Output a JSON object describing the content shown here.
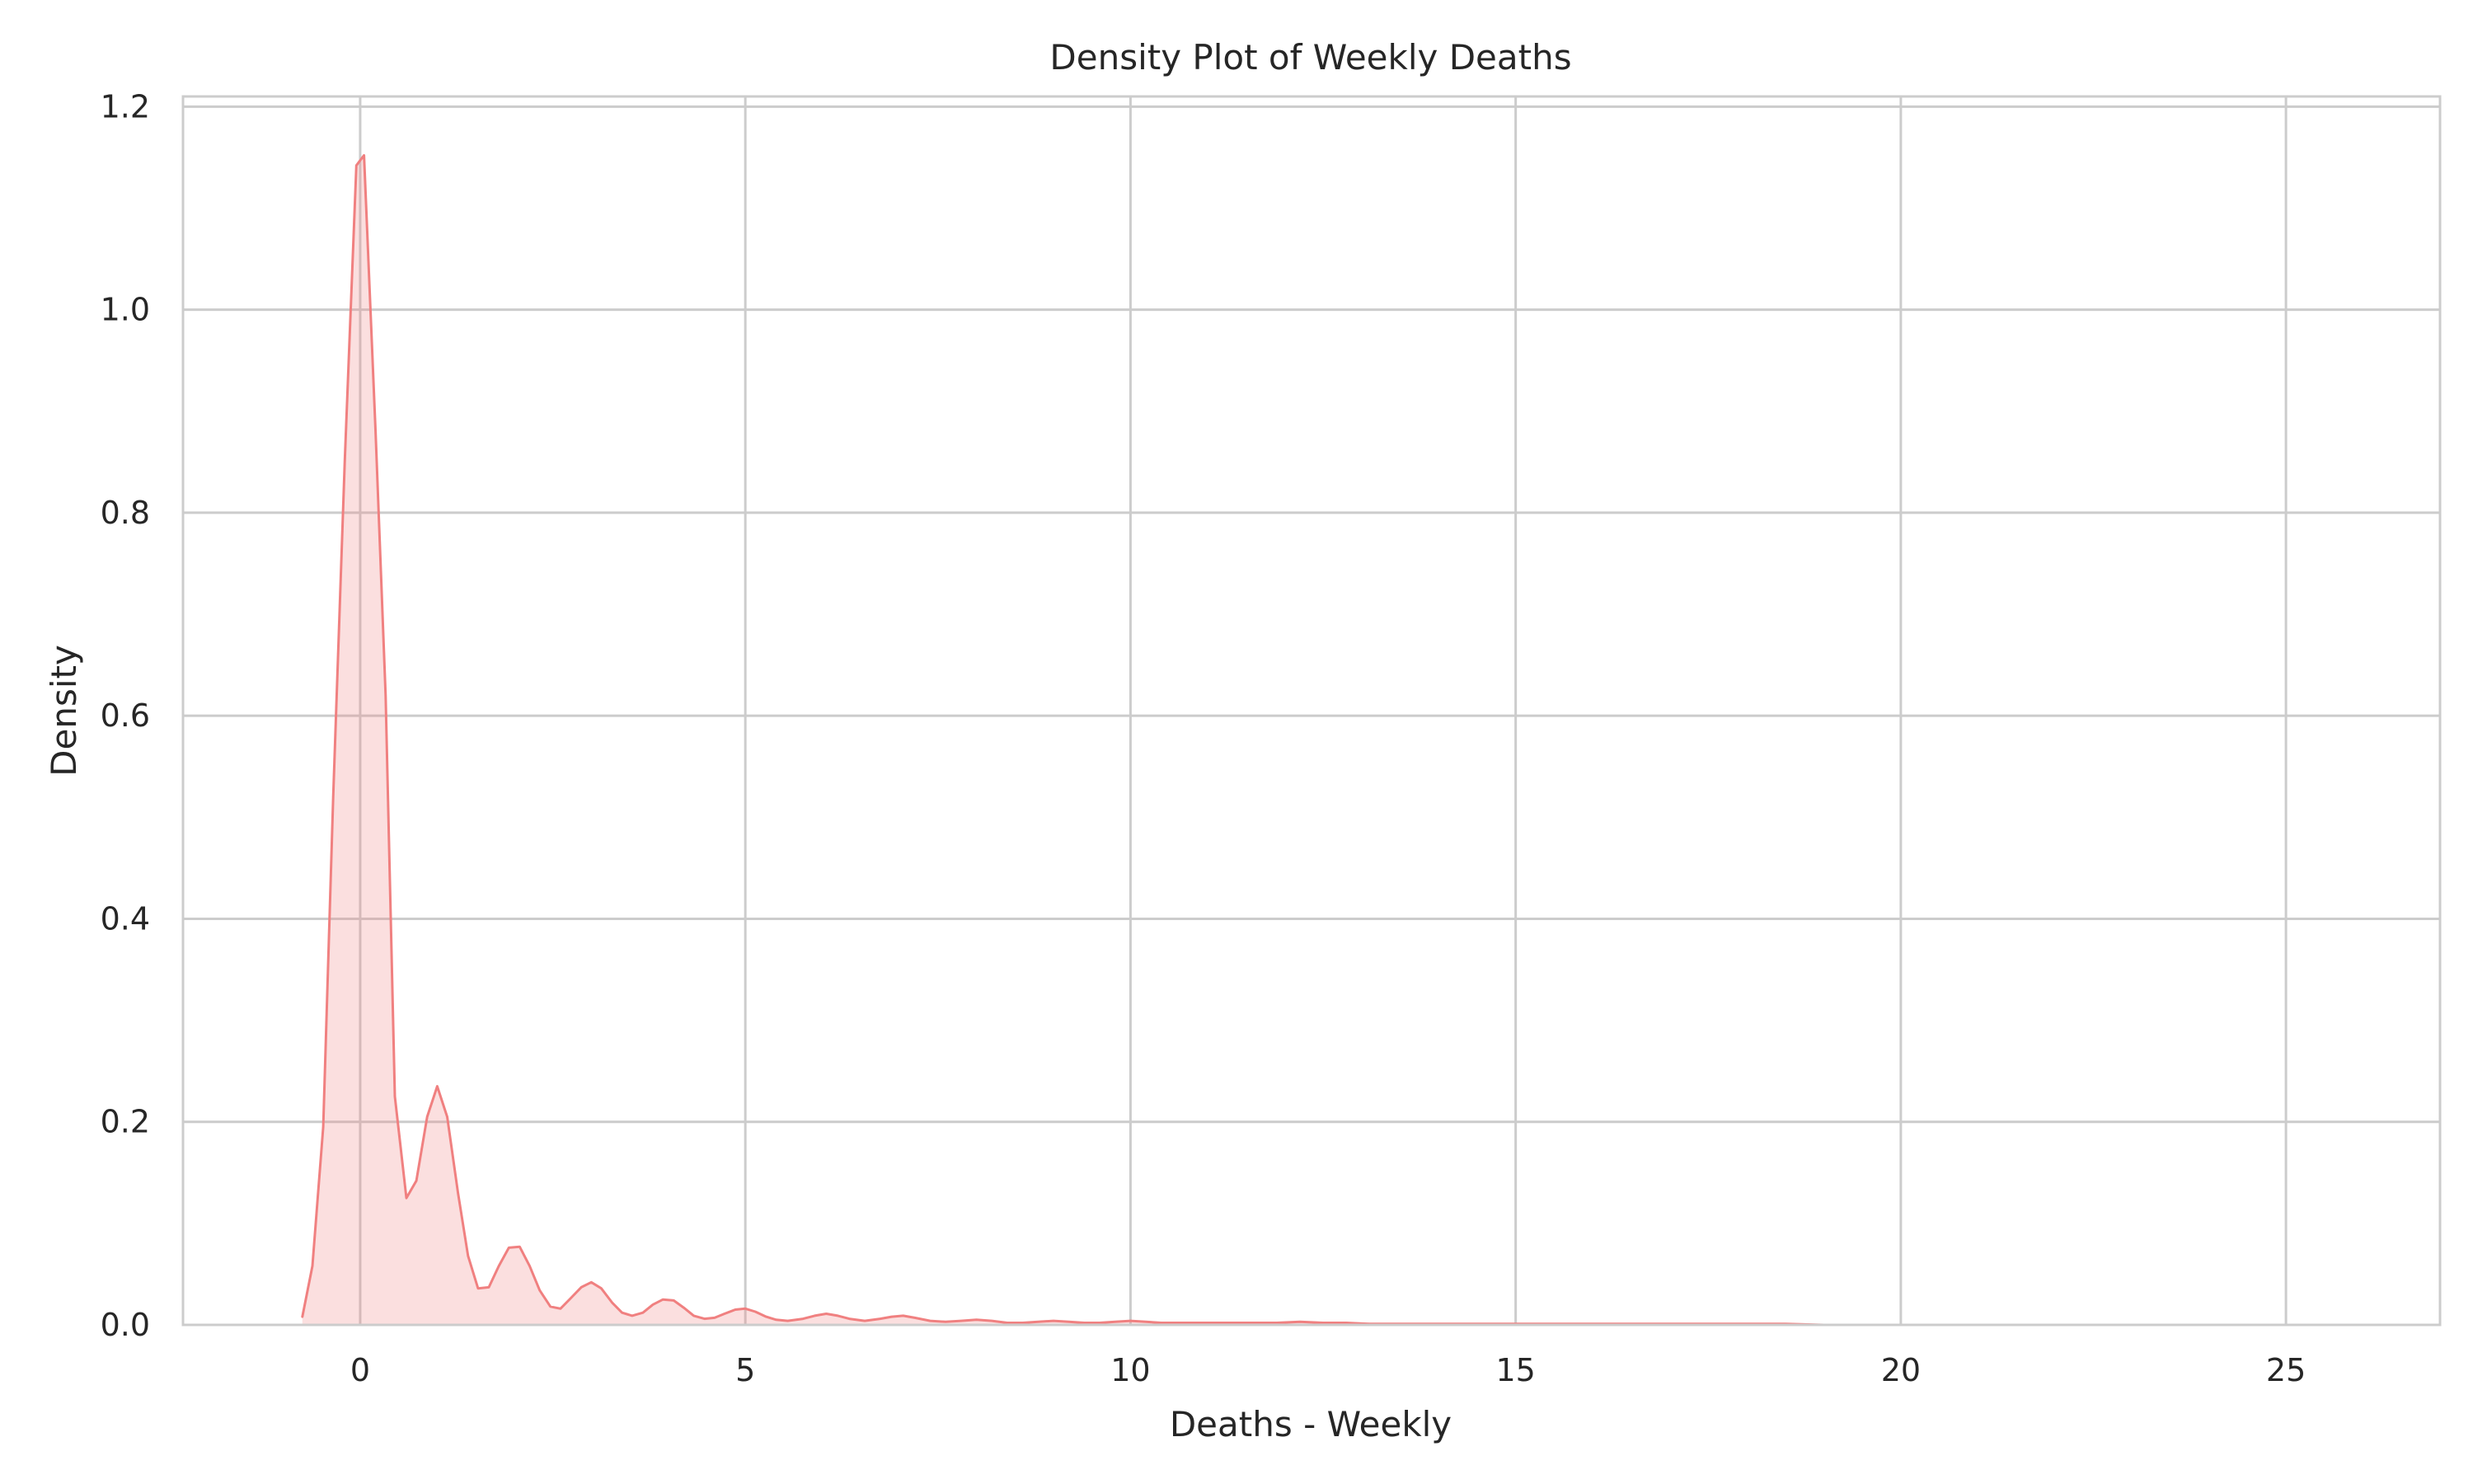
{
  "chart_data": {
    "type": "area",
    "title": "Density Plot of Weekly Deaths",
    "xlabel": "Deaths - Weekly",
    "ylabel": "Density",
    "xlim": [
      -2.3,
      27.0
    ],
    "ylim": [
      0.0,
      1.21
    ],
    "xticks": [
      0,
      5,
      10,
      15,
      20,
      25
    ],
    "yticks": [
      0.0,
      0.2,
      0.4,
      0.6,
      0.8,
      1.0,
      1.2
    ],
    "xtick_labels": [
      "0",
      "5",
      "10",
      "15",
      "20",
      "25"
    ],
    "ytick_labels": [
      "0.0",
      "0.2",
      "0.4",
      "0.6",
      "0.8",
      "1.0",
      "1.2"
    ],
    "grid": true,
    "series": [
      {
        "color": "#f08080",
        "fill_color": "#f08080",
        "fill_opacity": 0.25,
        "x": [
          -0.75,
          -0.62,
          -0.48,
          -0.35,
          -0.2,
          -0.05,
          0.05,
          0.2,
          0.33,
          0.45,
          0.6,
          0.73,
          0.87,
          1.0,
          1.13,
          1.27,
          1.4,
          1.53,
          1.67,
          1.8,
          1.93,
          2.07,
          2.2,
          2.33,
          2.47,
          2.6,
          2.73,
          2.87,
          3.0,
          3.13,
          3.27,
          3.4,
          3.53,
          3.67,
          3.8,
          3.93,
          4.07,
          4.2,
          4.33,
          4.47,
          4.6,
          4.73,
          4.87,
          5.0,
          5.13,
          5.27,
          5.4,
          5.55,
          5.75,
          5.9,
          6.05,
          6.2,
          6.35,
          6.55,
          6.75,
          6.9,
          7.05,
          7.2,
          7.4,
          7.6,
          7.8,
          8.0,
          8.2,
          8.4,
          8.6,
          8.8,
          9.0,
          9.2,
          9.4,
          9.6,
          9.8,
          10.0,
          10.2,
          10.4,
          10.7,
          11.0,
          11.3,
          11.6,
          11.9,
          12.2,
          12.5,
          12.8,
          13.1,
          13.5,
          14.0,
          14.5,
          15.0,
          15.5,
          16.0,
          16.5,
          17.0,
          17.5,
          18.0,
          18.5,
          19.0,
          20.0,
          21.0,
          22.0,
          23.0,
          24.0,
          25.0,
          25.8
        ],
        "y": [
          0.008,
          0.058,
          0.195,
          0.52,
          0.85,
          1.142,
          1.152,
          0.88,
          0.62,
          0.225,
          0.125,
          0.142,
          0.205,
          0.235,
          0.205,
          0.13,
          0.068,
          0.036,
          0.037,
          0.058,
          0.076,
          0.077,
          0.058,
          0.034,
          0.018,
          0.016,
          0.026,
          0.037,
          0.042,
          0.036,
          0.022,
          0.012,
          0.009,
          0.012,
          0.02,
          0.025,
          0.024,
          0.017,
          0.009,
          0.006,
          0.007,
          0.011,
          0.015,
          0.016,
          0.013,
          0.008,
          0.005,
          0.004,
          0.006,
          0.009,
          0.011,
          0.009,
          0.006,
          0.004,
          0.006,
          0.008,
          0.009,
          0.007,
          0.004,
          0.003,
          0.004,
          0.005,
          0.004,
          0.002,
          0.002,
          0.003,
          0.004,
          0.003,
          0.002,
          0.002,
          0.003,
          0.004,
          0.003,
          0.002,
          0.002,
          0.002,
          0.002,
          0.002,
          0.002,
          0.003,
          0.002,
          0.002,
          0.001,
          0.001,
          0.001,
          0.001,
          0.001,
          0.001,
          0.001,
          0.001,
          0.001,
          0.001,
          0.001,
          0.001,
          0.0,
          0.0,
          0.0,
          0.0,
          0.0,
          0.0,
          0.0,
          0.0
        ]
      }
    ]
  }
}
